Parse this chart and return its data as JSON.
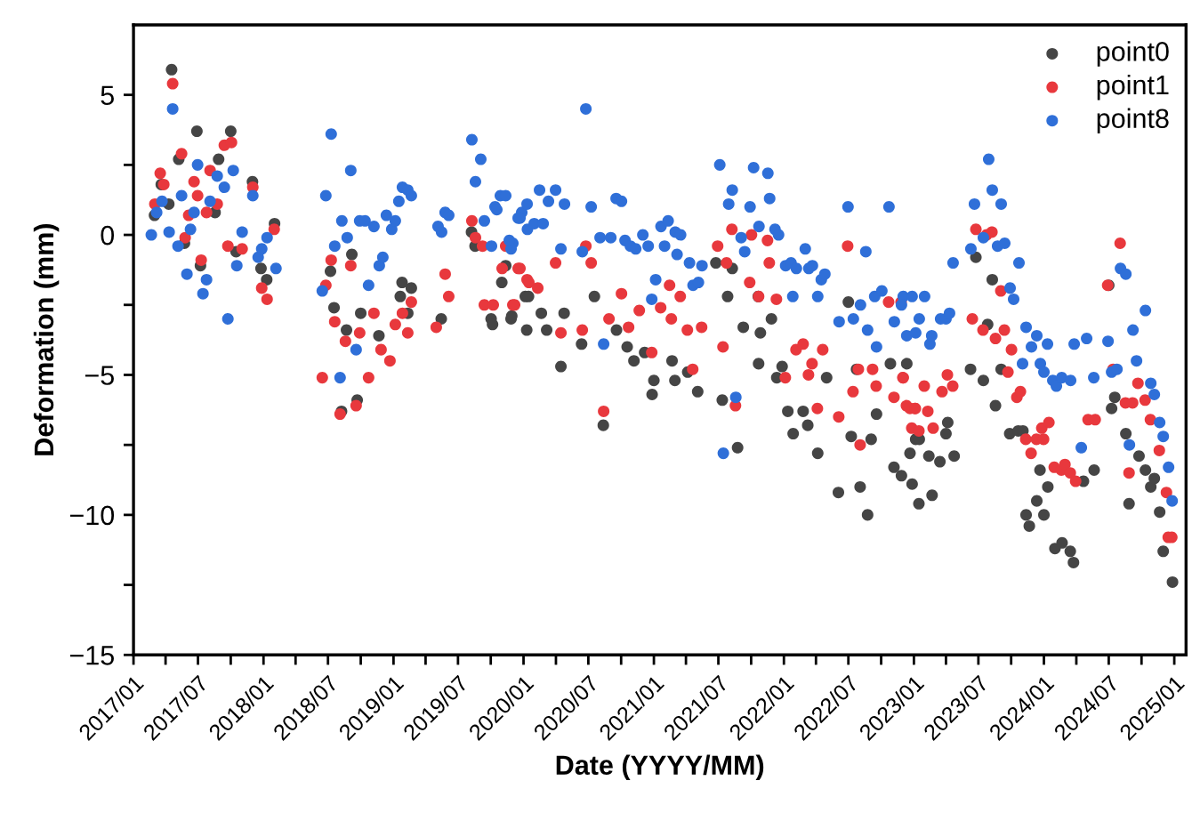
{
  "chart_data": {
    "type": "scatter",
    "xlabel": "Date (YYYY/MM)",
    "ylabel": "Deformation (mm)",
    "xlim": [
      "2017-01-01",
      "2025-02-03"
    ],
    "xticks": [
      {
        "value": "2017-01-01",
        "label": "2017/01"
      },
      {
        "value": "2017-04-01",
        "label": null
      },
      {
        "value": "2017-07-01",
        "label": "2017/07"
      },
      {
        "value": "2017-10-01",
        "label": null
      },
      {
        "value": "2018-01-01",
        "label": "2018/01"
      },
      {
        "value": "2018-04-01",
        "label": null
      },
      {
        "value": "2018-07-01",
        "label": "2018/07"
      },
      {
        "value": "2018-10-01",
        "label": null
      },
      {
        "value": "2019-01-01",
        "label": "2019/01"
      },
      {
        "value": "2019-04-01",
        "label": null
      },
      {
        "value": "2019-07-01",
        "label": "2019/07"
      },
      {
        "value": "2019-10-01",
        "label": null
      },
      {
        "value": "2020-01-01",
        "label": "2020/01"
      },
      {
        "value": "2020-04-01",
        "label": null
      },
      {
        "value": "2020-07-01",
        "label": "2020/07"
      },
      {
        "value": "2020-10-01",
        "label": null
      },
      {
        "value": "2021-01-01",
        "label": "2021/01"
      },
      {
        "value": "2021-04-01",
        "label": null
      },
      {
        "value": "2021-07-01",
        "label": "2021/07"
      },
      {
        "value": "2021-10-01",
        "label": null
      },
      {
        "value": "2022-01-01",
        "label": "2022/01"
      },
      {
        "value": "2022-04-01",
        "label": null
      },
      {
        "value": "2022-07-01",
        "label": "2022/07"
      },
      {
        "value": "2022-10-01",
        "label": null
      },
      {
        "value": "2023-01-01",
        "label": "2023/01"
      },
      {
        "value": "2023-04-01",
        "label": null
      },
      {
        "value": "2023-07-01",
        "label": "2023/07"
      },
      {
        "value": "2023-10-01",
        "label": null
      },
      {
        "value": "2024-01-01",
        "label": "2024/01"
      },
      {
        "value": "2024-04-01",
        "label": null
      },
      {
        "value": "2024-07-01",
        "label": "2024/07"
      },
      {
        "value": "2024-10-01",
        "label": null
      },
      {
        "value": "2025-01-01",
        "label": "2025/01"
      }
    ],
    "ylim": [
      -15,
      7.5
    ],
    "yticks": [
      {
        "value": -15,
        "label": "−15"
      },
      {
        "value": -12.5,
        "label": null
      },
      {
        "value": -10,
        "label": "−10"
      },
      {
        "value": -7.5,
        "label": null
      },
      {
        "value": -5,
        "label": "−5"
      },
      {
        "value": -2.5,
        "label": null
      },
      0,
      {
        "value": 2.5,
        "label": null
      },
      5
    ],
    "grid": false,
    "legend": "top right",
    "marker": "circle",
    "series": [
      {
        "name": "point0",
        "color": "#454545",
        "x": [
          "2017-03-01",
          "2017-03-20",
          "2017-04-10",
          "2017-04-18",
          "2017-05-08",
          "2017-05-24",
          "2017-06-28",
          "2017-07-08",
          "2017-08-18",
          "2017-08-28",
          "2017-10-01",
          "2017-10-16",
          "2017-12-01",
          "2017-12-25",
          "2018-01-10",
          "2018-02-01",
          "2018-07-08",
          "2018-07-18",
          "2018-08-08",
          "2018-08-22",
          "2018-09-06",
          "2018-09-21",
          "2018-10-01",
          "2018-11-21",
          "2019-01-20",
          "2019-01-25",
          "2019-02-10",
          "2019-02-20",
          "2019-05-15",
          "2019-08-08",
          "2019-08-18",
          "2019-10-02",
          "2019-10-06",
          "2019-11-01",
          "2019-11-12",
          "2019-11-27",
          "2019-11-29",
          "2020-01-06",
          "2020-01-10",
          "2020-01-15",
          "2020-02-20",
          "2020-03-06",
          "2020-04-15",
          "2020-04-24",
          "2020-06-12",
          "2020-07-18",
          "2020-08-12",
          "2020-09-18",
          "2020-10-18",
          "2020-11-06",
          "2020-12-06",
          "2020-12-27",
          "2021-01-01",
          "2021-02-21",
          "2021-03-01",
          "2021-04-06",
          "2021-05-04",
          "2021-06-24",
          "2021-07-12",
          "2021-07-27",
          "2021-08-09",
          "2021-08-24",
          "2021-09-09",
          "2021-10-21",
          "2021-10-22",
          "2021-10-27",
          "2021-11-27",
          "2021-12-12",
          "2021-12-27",
          "2022-01-12",
          "2022-01-27",
          "2022-02-24",
          "2022-03-09",
          "2022-04-06",
          "2022-05-01",
          "2022-06-03",
          "2022-07-01",
          "2022-07-09",
          "2022-07-24",
          "2022-08-03",
          "2022-08-24",
          "2022-09-03",
          "2022-09-18",
          "2022-10-27",
          "2022-11-06",
          "2022-11-27",
          "2022-12-12",
          "2022-12-21",
          "2022-12-27",
          "2023-01-06",
          "2023-01-15",
          "2023-01-16",
          "2023-02-12",
          "2023-02-21",
          "2023-03-15",
          "2023-04-01",
          "2023-04-06",
          "2023-04-24",
          "2023-06-09",
          "2023-06-24",
          "2023-07-15",
          "2023-07-27",
          "2023-08-09",
          "2023-08-18",
          "2023-09-03",
          "2023-09-27",
          "2023-10-21",
          "2023-11-03",
          "2023-11-12",
          "2023-11-21",
          "2023-12-12",
          "2023-12-21",
          "2024-01-01",
          "2024-01-12",
          "2024-02-01",
          "2024-02-21",
          "2024-03-15",
          "2024-03-24",
          "2024-04-21",
          "2024-05-21",
          "2024-07-01",
          "2024-07-09",
          "2024-07-18",
          "2024-08-18",
          "2024-08-27",
          "2024-09-24",
          "2024-10-12",
          "2024-10-27",
          "2024-11-06",
          "2024-11-21",
          "2024-12-01",
          "2024-12-27"
        ],
        "values": [
          0.7,
          1.8,
          1.1,
          5.9,
          2.7,
          -0.3,
          3.7,
          -1.1,
          0.8,
          2.7,
          3.7,
          -0.6,
          1.9,
          -1.2,
          -1.6,
          0.4,
          -1.3,
          -2.6,
          -6.3,
          -3.4,
          -0.7,
          -5.9,
          -2.8,
          -3.6,
          -2.2,
          -1.7,
          -2.8,
          -1.9,
          -3.0,
          0.1,
          -0.4,
          -3.0,
          -3.2,
          -1.7,
          -1.1,
          -3.0,
          -2.9,
          -2.2,
          -3.4,
          -2.2,
          -2.8,
          -3.4,
          -4.7,
          -2.8,
          -3.9,
          -2.2,
          -6.8,
          -3.4,
          -4.0,
          -4.5,
          -4.2,
          -5.7,
          -5.2,
          -4.5,
          -5.2,
          -4.9,
          -5.6,
          -1.0,
          -5.9,
          -2.2,
          -1.2,
          -7.6,
          -3.3,
          -2.2,
          -4.6,
          -3.5,
          -3.0,
          -5.1,
          -4.7,
          -6.3,
          -7.1,
          -6.3,
          -6.8,
          -7.8,
          -5.1,
          -9.2,
          -2.4,
          -7.2,
          -4.8,
          -9.0,
          -10.0,
          -7.3,
          -6.4,
          -4.6,
          -8.3,
          -8.6,
          -4.6,
          -7.8,
          -8.9,
          -7.3,
          -9.6,
          -7.3,
          -7.9,
          -9.3,
          -8.1,
          -7.1,
          -6.7,
          -7.9,
          -4.8,
          -0.8,
          -5.2,
          -3.2,
          -1.6,
          -6.1,
          -4.8,
          -7.1,
          -7.0,
          -7.0,
          -10.0,
          -10.4,
          -9.5,
          -8.4,
          -10.0,
          -9.0,
          -11.2,
          -11.0,
          -11.3,
          -11.7,
          -8.8,
          -8.4,
          -1.8,
          -6.2,
          -5.8,
          -7.1,
          -9.6,
          -7.9,
          -8.4,
          -9.0,
          -8.7,
          -9.9,
          -11.3,
          -12.4
        ]
      },
      {
        "name": "point1",
        "color": "#e8383d",
        "x": [
          "2017-04-21",
          "2017-03-17",
          "2017-03-02",
          "2017-03-27",
          "2017-05-16",
          "2017-06-20",
          "2017-06-30",
          "2017-06-05",
          "2017-08-04",
          "2017-08-24",
          "2017-07-25",
          "2017-09-13",
          "2017-10-03",
          "2017-07-10",
          "2017-05-26",
          "2017-09-23",
          "2017-11-02",
          "2017-12-02",
          "2017-12-27",
          "2018-01-11",
          "2018-01-31",
          "2018-07-10",
          "2018-06-25",
          "2018-06-15",
          "2018-07-20",
          "2018-08-04",
          "2018-08-19",
          "2018-09-03",
          "2018-09-18",
          "2018-09-28",
          "2018-10-23",
          "2018-11-07",
          "2018-11-27",
          "2018-12-22",
          "2019-01-06",
          "2019-01-26",
          "2019-02-10",
          "2019-02-20",
          "2019-05-01",
          "2019-05-26",
          "2019-06-05",
          "2019-08-09",
          "2019-08-19",
          "2019-09-08",
          "2019-09-13",
          "2019-10-08",
          "2019-11-02",
          "2019-12-02",
          "2019-12-17",
          "2020-01-11",
          "2019-11-12",
          "2019-12-22",
          "2019-12-07",
          "2020-01-16",
          "2020-02-10",
          "2020-03-31",
          "2020-04-15",
          "2020-06-24",
          "2020-07-09",
          "2020-06-14",
          "2020-08-28",
          "2020-10-02",
          "2020-10-22",
          "2020-11-21",
          "2020-12-26",
          "2021-01-20",
          "2021-02-14",
          "2021-02-19",
          "2021-03-16",
          "2021-04-05",
          "2021-05-15",
          "2021-04-20",
          "2020-08-13",
          "2021-07-14",
          "2021-06-29",
          "2021-08-08",
          "2021-07-24",
          "2021-10-02",
          "2021-11-16",
          "2021-11-21",
          "2021-09-27",
          "2021-10-22",
          "2021-12-11",
          "2021-08-18",
          "2022-02-04",
          "2022-02-24",
          "2022-01-05",
          "2022-03-11",
          "2022-03-21",
          "2022-04-20",
          "2022-04-05",
          "2022-06-04",
          "2022-06-29",
          "2022-07-29",
          "2022-07-14",
          "2022-08-03",
          "2022-09-07",
          "2022-09-17",
          "2022-10-22",
          "2022-11-06",
          "2022-12-01",
          "2022-12-21",
          "2023-01-05",
          "2022-12-26",
          "2022-11-26",
          "2022-12-11",
          "2023-01-04",
          "2023-02-09",
          "2023-01-15",
          "2023-02-24",
          "2023-01-30",
          "2022-12-02",
          "2023-03-21",
          "2023-04-05",
          "2023-04-20",
          "2023-06-14",
          "2023-06-24",
          "2023-07-14",
          "2023-07-24",
          "2023-08-08",
          "2023-08-18",
          "2023-09-02",
          "2023-09-12",
          "2023-09-22",
          "2023-10-02",
          "2023-10-17",
          "2023-10-27",
          "2023-11-11",
          "2023-11-26",
          "2023-12-11",
          "2023-12-31",
          "2023-12-26",
          "2024-01-15",
          "2024-01-30",
          "2024-02-19",
          "2024-02-29",
          "2024-03-15",
          "2024-03-30",
          "2024-05-04",
          "2024-05-24",
          "2024-06-28",
          "2024-08-02",
          "2024-07-13",
          "2024-08-17",
          "2024-09-06",
          "2024-09-21",
          "2024-08-27",
          "2024-10-11",
          "2024-10-26",
          "2024-11-20",
          "2024-12-10",
          "2024-12-15",
          "2024-12-25"
        ],
        "values": [
          5.4,
          2.2,
          1.1,
          1.8,
          2.9,
          1.9,
          1.4,
          0.7,
          2.3,
          1.1,
          0.8,
          3.2,
          3.3,
          -0.9,
          -0.1,
          -0.4,
          -0.5,
          1.7,
          -1.9,
          -2.3,
          0.2,
          -0.9,
          -1.8,
          -5.1,
          -3.1,
          -6.4,
          -3.8,
          -1.1,
          -6.1,
          -3.5,
          -5.1,
          -2.8,
          -4.1,
          -4.5,
          -3.2,
          -2.8,
          -3.5,
          -2.4,
          -3.3,
          -1.4,
          -2.2,
          0.5,
          -0.1,
          -0.4,
          -2.5,
          -2.5,
          -1.2,
          -2.5,
          -1.2,
          -1.6,
          -0.4,
          -1.2,
          -2.5,
          -1.7,
          -1.9,
          -1.0,
          -3.5,
          -0.4,
          -1.0,
          -3.4,
          -3.0,
          -2.1,
          -3.3,
          -2.7,
          -4.2,
          -2.6,
          -1.8,
          -3.0,
          -2.2,
          -3.4,
          -3.3,
          -4.8,
          -6.3,
          -4.0,
          -0.4,
          0.2,
          -1.0,
          0.0,
          -0.2,
          -1.0,
          -1.7,
          -2.2,
          -2.3,
          -6.1,
          -4.1,
          -3.9,
          -5.1,
          -5.0,
          -4.6,
          -4.1,
          -6.2,
          -6.5,
          -0.4,
          -4.8,
          -5.6,
          -7.5,
          -4.8,
          -5.4,
          -2.4,
          -5.8,
          -5.1,
          -6.2,
          -6.2,
          -6.9,
          -2.4,
          -6.1,
          -6.2,
          -6.3,
          -7.0,
          -6.9,
          -5.4,
          -5.1,
          -5.6,
          -5.0,
          -5.4,
          -3.0,
          0.2,
          -3.4,
          0.0,
          0.1,
          -3.7,
          -2.0,
          -3.4,
          -4.9,
          -4.1,
          -5.8,
          -5.6,
          -7.3,
          -7.8,
          -7.3,
          -7.3,
          -6.9,
          -6.7,
          -8.3,
          -8.4,
          -8.2,
          -8.5,
          -8.8,
          -6.6,
          -6.6,
          -1.8,
          -0.3,
          -4.8,
          -6.0,
          -6.0,
          -5.3,
          -8.5,
          -5.9,
          -6.6,
          -7.7,
          -9.2,
          -10.8,
          -10.8
        ]
      },
      {
        "name": "point8",
        "color": "#2f6fd8",
        "x": [
          "2017-02-20",
          "2017-04-21",
          "2017-04-11",
          "2017-03-07",
          "2017-03-22",
          "2017-05-06",
          "2017-05-16",
          "2017-06-10",
          "2017-06-20",
          "2017-06-30",
          "2017-05-31",
          "2017-07-25",
          "2017-07-15",
          "2017-08-04",
          "2017-08-24",
          "2017-09-13",
          "2017-10-08",
          "2017-09-23",
          "2017-10-18",
          "2017-11-02",
          "2017-12-02",
          "2017-12-17",
          "2017-12-27",
          "2018-01-11",
          "2018-02-05",
          "2018-06-15",
          "2018-06-25",
          "2018-07-10",
          "2018-08-04",
          "2018-07-20",
          "2018-08-09",
          "2018-08-24",
          "2018-09-03",
          "2018-09-18",
          "2018-09-28",
          "2018-10-13",
          "2018-10-23",
          "2018-11-07",
          "2018-11-22",
          "2018-12-02",
          "2018-12-12",
          "2018-12-27",
          "2019-01-06",
          "2019-01-16",
          "2019-01-26",
          "2019-02-10",
          "2019-02-20",
          "2019-05-06",
          "2019-05-16",
          "2019-05-26",
          "2019-06-05",
          "2019-08-09",
          "2019-09-03",
          "2019-08-19",
          "2019-09-13",
          "2019-10-03",
          "2019-10-13",
          "2019-10-28",
          "2019-11-12",
          "2019-12-17",
          "2019-12-27",
          "2020-01-11",
          "2019-12-02",
          "2020-01-12",
          "2019-10-18",
          "2019-11-27",
          "2019-11-22",
          "2019-12-22",
          "2020-01-31",
          "2020-02-15",
          "2020-02-25",
          "2020-03-11",
          "2020-03-31",
          "2020-04-25",
          "2020-04-15",
          "2020-06-24",
          "2020-07-09",
          "2020-06-14",
          "2020-08-03",
          "2020-09-02",
          "2020-09-17",
          "2020-10-02",
          "2020-10-12",
          "2020-10-27",
          "2020-11-11",
          "2020-12-01",
          "2020-12-16",
          "2021-01-21",
          "2021-02-10",
          "2021-03-02",
          "2021-03-17",
          "2021-03-07",
          "2021-01-31",
          "2021-01-06",
          "2020-12-26",
          "2020-08-13",
          "2021-04-11",
          "2021-05-16",
          "2021-04-21",
          "2021-05-06",
          "2021-07-05",
          "2021-07-15",
          "2021-08-09",
          "2021-07-30",
          "2021-09-03",
          "2021-09-28",
          "2021-09-13",
          "2021-10-08",
          "2021-11-17",
          "2021-11-22",
          "2021-10-23",
          "2021-12-07",
          "2021-12-17",
          "2021-08-19",
          "2022-01-06",
          "2022-01-21",
          "2022-02-05",
          "2022-03-02",
          "2022-03-12",
          "2022-03-22",
          "2022-04-16",
          "2022-04-26",
          "2022-04-06",
          "2022-01-26",
          "2022-06-30",
          "2022-08-19",
          "2022-06-05",
          "2022-07-15",
          "2022-08-04",
          "2022-08-24",
          "2022-09-13",
          "2022-10-03",
          "2022-09-18",
          "2022-10-23",
          "2022-11-07",
          "2022-12-02",
          "2022-12-27",
          "2022-12-12",
          "2023-01-06",
          "2023-01-16",
          "2022-11-27",
          "2023-01-31",
          "2023-02-15",
          "2023-02-20",
          "2023-03-17",
          "2023-04-01",
          "2023-04-11",
          "2023-04-21",
          "2023-06-10",
          "2023-06-20",
          "2023-07-15",
          "2023-07-30",
          "2023-08-09",
          "2023-09-03",
          "2023-08-24",
          "2023-09-13",
          "2023-10-23",
          "2023-09-28",
          "2023-10-08",
          "2023-11-02",
          "2023-11-12",
          "2023-11-27",
          "2023-12-12",
          "2023-12-22",
          "2024-01-11",
          "2024-01-01",
          "2024-01-26",
          "2024-02-05",
          "2024-02-20",
          "2024-03-16",
          "2024-03-26",
          "2024-04-30",
          "2024-04-15",
          "2024-05-20",
          "2024-06-29",
          "2024-07-09",
          "2024-07-24",
          "2024-08-03",
          "2024-08-18",
          "2024-08-28",
          "2024-09-07",
          "2024-09-17",
          "2024-10-12",
          "2024-10-27",
          "2024-11-06",
          "2024-11-21",
          "2024-12-01",
          "2024-12-16",
          "2024-12-26"
        ],
        "values": [
          0.0,
          4.5,
          0.1,
          0.8,
          1.2,
          -0.4,
          1.4,
          0.2,
          0.8,
          2.5,
          -1.4,
          -1.6,
          -2.1,
          1.2,
          2.1,
          1.7,
          2.3,
          -3.0,
          -1.1,
          0.1,
          1.4,
          -0.8,
          -0.5,
          -0.1,
          -1.2,
          -2.0,
          1.4,
          3.6,
          -5.1,
          -0.4,
          0.5,
          -0.1,
          2.3,
          -4.1,
          0.5,
          0.5,
          -1.8,
          0.3,
          -1.1,
          -0.8,
          0.7,
          0.2,
          0.5,
          1.2,
          1.7,
          1.6,
          1.4,
          0.3,
          0.1,
          0.8,
          0.7,
          3.4,
          2.7,
          1.9,
          0.5,
          -0.4,
          1.0,
          1.4,
          1.4,
          0.6,
          0.8,
          1.1,
          -0.3,
          0.2,
          0.9,
          -0.5,
          -0.2,
          0.6,
          0.4,
          1.6,
          0.4,
          1.2,
          1.6,
          1.1,
          -0.5,
          4.5,
          1.0,
          -0.6,
          -0.1,
          -0.1,
          1.3,
          1.2,
          -0.2,
          -0.4,
          -0.5,
          0.0,
          -0.4,
          0.3,
          0.5,
          0.1,
          0.0,
          -0.7,
          -0.4,
          -1.6,
          -2.3,
          -3.9,
          -1.0,
          -1.1,
          -1.8,
          -1.7,
          2.5,
          -7.8,
          1.6,
          1.1,
          -0.1,
          1.0,
          -0.6,
          2.4,
          2.2,
          1.3,
          0.3,
          0.2,
          0.0,
          -5.8,
          -1.1,
          -1.0,
          -1.2,
          -0.5,
          -1.2,
          -1.1,
          -1.6,
          -1.4,
          -2.2,
          -2.2,
          1.0,
          -0.6,
          -3.1,
          -3.0,
          -2.5,
          -3.4,
          -2.2,
          -2.0,
          -4.0,
          1.0,
          -3.1,
          -2.2,
          -2.2,
          -3.6,
          -3.5,
          -3.0,
          -2.5,
          -2.2,
          -3.9,
          -3.6,
          -3.0,
          -3.0,
          -2.8,
          -1.0,
          -0.5,
          1.1,
          -0.1,
          2.7,
          1.6,
          1.1,
          -0.4,
          -0.3,
          -1.0,
          -1.9,
          -2.3,
          -4.6,
          -3.3,
          -4.0,
          -3.6,
          -4.6,
          -3.9,
          -4.9,
          -5.2,
          -5.4,
          -5.1,
          -5.2,
          -3.9,
          -3.7,
          -7.6,
          -5.1,
          -3.8,
          -4.9,
          -4.8,
          -1.2,
          -1.4,
          -7.5,
          -3.4,
          -4.5,
          -2.7,
          -5.3,
          -5.7,
          -6.7,
          -7.2,
          -8.3,
          -9.5
        ]
      }
    ]
  }
}
